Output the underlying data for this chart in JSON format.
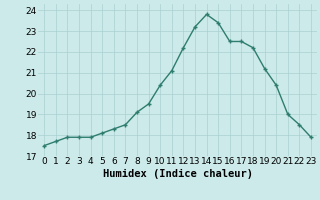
{
  "x": [
    0,
    1,
    2,
    3,
    4,
    5,
    6,
    7,
    8,
    9,
    10,
    11,
    12,
    13,
    14,
    15,
    16,
    17,
    18,
    19,
    20,
    21,
    22,
    23
  ],
  "y": [
    17.5,
    17.7,
    17.9,
    17.9,
    17.9,
    18.1,
    18.3,
    18.5,
    19.1,
    19.5,
    20.4,
    21.1,
    22.2,
    23.2,
    23.8,
    23.4,
    22.5,
    22.5,
    22.2,
    21.2,
    20.4,
    19.0,
    18.5,
    17.9
  ],
  "line_color": "#2e7d6e",
  "marker": "+",
  "bg_color": "#cceaea",
  "grid_color": "#aacfcf",
  "xlabel": "Humidex (Indice chaleur)",
  "yticks": [
    17,
    18,
    19,
    20,
    21,
    22,
    23,
    24
  ],
  "xticks": [
    0,
    1,
    2,
    3,
    4,
    5,
    6,
    7,
    8,
    9,
    10,
    11,
    12,
    13,
    14,
    15,
    16,
    17,
    18,
    19,
    20,
    21,
    22,
    23
  ],
  "ylim": [
    17,
    24.3
  ],
  "xlim": [
    -0.5,
    23.5
  ],
  "xlabel_fontsize": 7.5,
  "tick_fontsize": 6.5,
  "line_width": 1.0
}
